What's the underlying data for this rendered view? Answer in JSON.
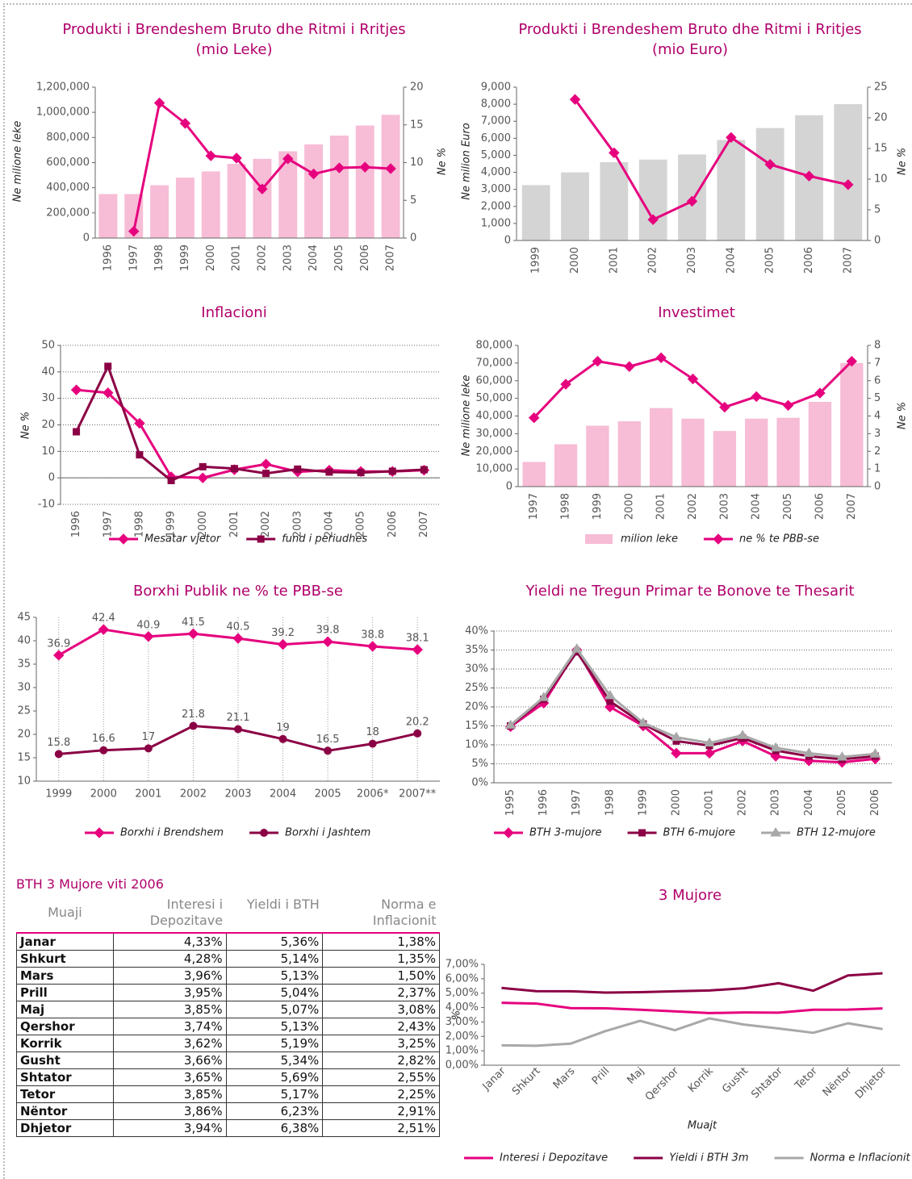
{
  "chart_data": [
    {
      "type": "combo",
      "title": "Produkti i Brendeshem Bruto dhe Ritmi i Rritjes",
      "subtitle": "(mio Leke)",
      "ylabel": "Ne milione leke",
      "y2label": "Ne %",
      "categories": [
        "1996",
        "1997",
        "1998",
        "1999",
        "2000",
        "2001",
        "2002",
        "2003",
        "2004",
        "2005",
        "2006",
        "2007"
      ],
      "series": [
        {
          "type": "bar",
          "color": "#f7bcd6",
          "values": [
            350000,
            350000,
            420000,
            480000,
            530000,
            590000,
            630000,
            690000,
            745000,
            815000,
            895000,
            980000
          ]
        },
        {
          "type": "line",
          "axis": "y2",
          "color": "#e6007e",
          "marker": "diamond",
          "values": [
            null,
            0.9,
            17.9,
            15.2,
            10.9,
            10.6,
            6.5,
            10.5,
            8.5,
            9.3,
            9.4,
            9.2
          ]
        }
      ],
      "ylim": [
        0,
        1200000
      ],
      "yticks": [
        0,
        {
          "value": 200000,
          "label": "200,000"
        },
        {
          "value": 400000,
          "label": "400,000"
        },
        {
          "value": 600000,
          "label": "600,000"
        },
        {
          "value": 800000,
          "label": "800,000"
        },
        {
          "value": 1000000,
          "label": "1,000,000"
        },
        {
          "value": 1200000,
          "label": "1,200,000"
        }
      ],
      "y2lim": [
        0,
        20
      ],
      "y2ticks": [
        0,
        5,
        10,
        15,
        20
      ],
      "grid": false
    },
    {
      "type": "combo",
      "title": "Produkti i Brendeshem Bruto dhe Ritmi i Rritjes",
      "subtitle": "(mio Euro)",
      "ylabel": "Ne milion Euro",
      "y2label": "Ne %",
      "categories": [
        "1999",
        "2000",
        "2001",
        "2002",
        "2003",
        "2004",
        "2005",
        "2006",
        "2007"
      ],
      "series": [
        {
          "type": "bar",
          "color": "#d4d4d4",
          "values": [
            3250,
            4000,
            4600,
            4750,
            5050,
            5900,
            6600,
            7350,
            8000
          ]
        },
        {
          "type": "line",
          "axis": "y2",
          "color": "#e6007e",
          "marker": "diamond",
          "values": [
            null,
            23.0,
            14.3,
            3.4,
            6.4,
            16.8,
            12.4,
            10.5,
            9.1
          ]
        }
      ],
      "ylim": [
        0,
        9000
      ],
      "yticks": [
        0,
        {
          "value": 1000,
          "label": "1,000"
        },
        {
          "value": 2000,
          "label": "2,000"
        },
        {
          "value": 3000,
          "label": "3,000"
        },
        {
          "value": 4000,
          "label": "4,000"
        },
        {
          "value": 5000,
          "label": "5,000"
        },
        {
          "value": 6000,
          "label": "6,000"
        },
        {
          "value": 7000,
          "label": "7,000"
        },
        {
          "value": 8000,
          "label": "8,000"
        },
        {
          "value": 9000,
          "label": "9,000"
        }
      ],
      "y2lim": [
        0,
        25
      ],
      "y2ticks": [
        0,
        5,
        10,
        15,
        20,
        25
      ],
      "grid": false
    },
    {
      "type": "line",
      "title": "Inflacioni",
      "ylabel": "Ne %",
      "categories": [
        "1996",
        "1997",
        "1998",
        "1999",
        "2000",
        "2001",
        "2002",
        "2003",
        "2004",
        "2005",
        "2006",
        "2007"
      ],
      "series": [
        {
          "name": "Mesatar vjetor",
          "type": "line",
          "color": "#e6007e",
          "marker": "diamond",
          "values": [
            33.2,
            32.1,
            20.6,
            0.4,
            0,
            3.1,
            5.2,
            2.3,
            2.9,
            2.4,
            2.4,
            2.9
          ]
        },
        {
          "name": "fund i periudhes",
          "type": "line",
          "color": "#8b0045",
          "marker": "square",
          "values": [
            17.4,
            42.1,
            8.7,
            -1,
            4.2,
            3.5,
            1.7,
            3.3,
            2.2,
            2,
            2.5,
            3.1
          ]
        }
      ],
      "ylim": [
        -10,
        50
      ],
      "yticks": [
        -10,
        0,
        10,
        20,
        30,
        40,
        50
      ],
      "grid": "y"
    },
    {
      "type": "combo",
      "title": "Investimet",
      "ylabel": "Ne milione leke",
      "y2label": "Ne %",
      "categories": [
        "1997",
        "1998",
        "1999",
        "2000",
        "2001",
        "2002",
        "2003",
        "2004",
        "2005",
        "2006",
        "2007"
      ],
      "series": [
        {
          "name": "milion leke",
          "type": "bar",
          "color": "#f7bcd6",
          "values": [
            14000,
            24000,
            34500,
            37000,
            44500,
            38500,
            31500,
            38500,
            39000,
            48000,
            70000
          ]
        },
        {
          "name": "ne % te PBB-se",
          "type": "line",
          "axis": "y2",
          "color": "#e6007e",
          "marker": "diamond",
          "values": [
            3.9,
            5.8,
            7.1,
            6.8,
            7.3,
            6.1,
            4.5,
            5.1,
            4.6,
            5.3,
            7.1
          ]
        }
      ],
      "ylim": [
        0,
        80000
      ],
      "yticks": [
        0,
        {
          "value": 10000,
          "label": "10,000"
        },
        {
          "value": 20000,
          "label": "20,000"
        },
        {
          "value": 30000,
          "label": "30,000"
        },
        {
          "value": 40000,
          "label": "40,000"
        },
        {
          "value": 50000,
          "label": "50,000"
        },
        {
          "value": 60000,
          "label": "60,000"
        },
        {
          "value": 70000,
          "label": "70,000"
        },
        {
          "value": 80000,
          "label": "80,000"
        }
      ],
      "y2lim": [
        0,
        8
      ],
      "y2ticks": [
        0,
        1,
        2,
        3,
        4,
        5,
        6,
        7,
        8
      ],
      "grid": false
    },
    {
      "type": "line",
      "title": "Borxhi Publik ne % te PBB-se",
      "data_labels": true,
      "categories": [
        "1999",
        "2000",
        "2001",
        "2002",
        "2003",
        "2004",
        "2005",
        "2006*",
        "2007**"
      ],
      "series": [
        {
          "name": "Borxhi i Brendshem",
          "type": "line",
          "color": "#e6007e",
          "marker": "diamond",
          "values": [
            36.9,
            42.4,
            40.9,
            41.5,
            40.5,
            39.2,
            39.8,
            38.8,
            38.1
          ]
        },
        {
          "name": "Borxhi i Jashtem",
          "type": "line",
          "color": "#8b0045",
          "marker": "circle",
          "values": [
            15.8,
            16.6,
            17,
            21.8,
            21.1,
            19,
            16.5,
            18,
            20.2
          ]
        }
      ],
      "ylim": [
        10,
        45
      ],
      "yticks": [
        10,
        15,
        20,
        25,
        30,
        35,
        40,
        45
      ],
      "grid": "x"
    },
    {
      "type": "line",
      "title": "Yieldi ne Tregun Primar te Bonove te Thesarit",
      "categories": [
        "1995",
        "1996",
        "1997",
        "1998",
        "1999",
        "2000",
        "2001",
        "2002",
        "2003",
        "2004",
        "2005",
        "2006"
      ],
      "series": [
        {
          "name": "BTH 3-mujore",
          "type": "line",
          "color": "#e6007e",
          "marker": "diamond",
          "values": [
            14.8,
            21,
            35,
            20,
            15,
            7.8,
            7.8,
            11,
            7,
            5.8,
            5.4,
            6.3
          ]
        },
        {
          "name": "BTH 6-mujore",
          "type": "line",
          "color": "#8b0045",
          "marker": "square",
          "values": [
            15,
            22,
            34.5,
            21.5,
            15.5,
            11,
            9.8,
            11.8,
            8.5,
            7,
            6.2,
            7
          ]
        },
        {
          "name": "BTH 12-mujore",
          "type": "line",
          "color": "#a8a8a8",
          "marker": "triangle",
          "values": [
            15.2,
            22.5,
            35.3,
            23,
            15.8,
            12,
            10.5,
            12.5,
            9.2,
            7.8,
            6.8,
            7.6
          ]
        }
      ],
      "ylim": [
        0,
        40
      ],
      "yticks": [
        {
          "value": 0,
          "label": "0%"
        },
        {
          "value": 5,
          "label": "5%"
        },
        {
          "value": 10,
          "label": "10%"
        },
        {
          "value": 15,
          "label": "15%"
        },
        {
          "value": 20,
          "label": "20%"
        },
        {
          "value": 25,
          "label": "25%"
        },
        {
          "value": 30,
          "label": "30%"
        },
        {
          "value": 35,
          "label": "35%"
        },
        {
          "value": 40,
          "label": "40%"
        }
      ],
      "grid": "y"
    },
    {
      "type": "line",
      "title": "3 Mujore",
      "ylabel": "%",
      "xlabel": "Muajt",
      "categories": [
        "Janar",
        "Shkurt",
        "Mars",
        "Prill",
        "Maj",
        "Qershor",
        "Korrik",
        "Gusht",
        "Shtator",
        "Tetor",
        "Nëntor",
        "Dhjetor"
      ],
      "series": [
        {
          "name": "Interesi i Depozitave",
          "type": "line",
          "color": "#e6007e",
          "values": [
            4.33,
            4.28,
            3.96,
            3.95,
            3.85,
            3.74,
            3.62,
            3.66,
            3.65,
            3.85,
            3.86,
            3.94
          ]
        },
        {
          "name": "Yieldi i BTH 3m",
          "type": "line",
          "color": "#8b0045",
          "values": [
            5.36,
            5.14,
            5.13,
            5.04,
            5.07,
            5.13,
            5.19,
            5.34,
            5.69,
            5.17,
            6.23,
            6.38
          ]
        },
        {
          "name": "Norma e Inflacionit",
          "type": "line",
          "color": "#a8a8a8",
          "values": [
            1.38,
            1.35,
            1.5,
            2.37,
            3.08,
            2.43,
            3.25,
            2.82,
            2.55,
            2.25,
            2.91,
            2.51
          ]
        }
      ],
      "ylim": [
        0,
        7
      ],
      "yticks": [
        {
          "value": 0,
          "label": "0,00%"
        },
        {
          "value": 1,
          "label": "1,00%"
        },
        {
          "value": 2,
          "label": "2,00%"
        },
        {
          "value": 3,
          "label": "3,00%"
        },
        {
          "value": 4,
          "label": "4,00%"
        },
        {
          "value": 5,
          "label": "5,00%"
        },
        {
          "value": 6,
          "label": "6,00%"
        },
        {
          "value": 7,
          "label": "7,00%"
        }
      ],
      "grid": false
    }
  ],
  "table": {
    "title": "BTH 3 Mujore viti 2006",
    "header": [
      "Muaji",
      "Interesi i Depozitave",
      "Yieldi i BTH",
      "Norma e Inflacionit"
    ],
    "rows": [
      [
        "Janar",
        "4,33%",
        "5,36%",
        "1,38%"
      ],
      [
        "Shkurt",
        "4,28%",
        "5,14%",
        "1,35%"
      ],
      [
        "Mars",
        "3,96%",
        "5,13%",
        "1,50%"
      ],
      [
        "Prill",
        "3,95%",
        "5,04%",
        "2,37%"
      ],
      [
        "Maj",
        "3,85%",
        "5,07%",
        "3,08%"
      ],
      [
        "Qershor",
        "3,74%",
        "5,13%",
        "2,43%"
      ],
      [
        "Korrik",
        "3,62%",
        "5,19%",
        "3,25%"
      ],
      [
        "Gusht",
        "3,66%",
        "5,34%",
        "2,82%"
      ],
      [
        "Shtator",
        "3,65%",
        "5,69%",
        "2,55%"
      ],
      [
        "Tetor",
        "3,85%",
        "5,17%",
        "2,25%"
      ],
      [
        "Nëntor",
        "3,86%",
        "6,23%",
        "2,91%"
      ],
      [
        "Dhjetor",
        "3,94%",
        "6,38%",
        "2,51%"
      ]
    ]
  }
}
